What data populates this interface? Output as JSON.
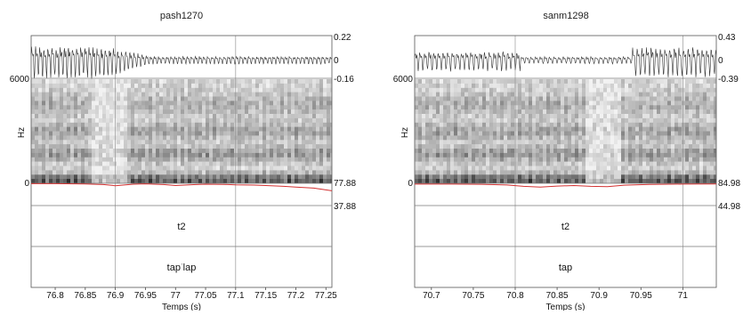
{
  "chart_data": [
    {
      "type": "spectrogram",
      "title": "pash1270",
      "xlabel": "Temps (s)",
      "ylabel": "Hz",
      "xlim": [
        76.76,
        77.26
      ],
      "x_ticks": [
        "76.8",
        "76.85",
        "76.9",
        "76.95",
        "77",
        "77.05",
        "77.1",
        "77.15",
        "77.2",
        "77.25"
      ],
      "x_tick_values": [
        76.8,
        76.85,
        76.9,
        76.95,
        77.0,
        77.05,
        77.1,
        77.15,
        77.2,
        77.25
      ],
      "waveform_ticks": [
        "0.22",
        "0",
        "-0.16"
      ],
      "spectrogram_range": [
        "6000",
        "0"
      ],
      "pitch_range": [
        "77.88",
        "37.88"
      ],
      "pitch_contour": {
        "x": [
          76.76,
          76.8,
          76.85,
          76.88,
          76.9,
          76.93,
          76.95,
          76.98,
          77.0,
          77.03,
          77.05,
          77.08,
          77.1,
          77.13,
          77.15,
          77.18,
          77.2,
          77.23,
          77.26
        ],
        "y": [
          77.3,
          77.3,
          76.7,
          75.6,
          73.6,
          76.2,
          77.0,
          75.7,
          73.9,
          75.4,
          76.2,
          75.9,
          75.1,
          74.7,
          73.9,
          72.4,
          71.2,
          69.3,
          64.5
        ]
      },
      "tier_1": "t2",
      "tier_2": "tapˈlap",
      "tier_2_base": "tap",
      "tier_2_mark": "ˈ",
      "tier_2_rest": "lap"
    },
    {
      "type": "spectrogram",
      "title": "sanm1298",
      "xlabel": "Temps (s)",
      "ylabel": "Hz",
      "xlim": [
        70.68,
        71.04
      ],
      "x_ticks": [
        "70.7",
        "70.75",
        "70.8",
        "70.85",
        "70.9",
        "70.95",
        "71"
      ],
      "x_tick_values": [
        70.7,
        70.75,
        70.8,
        70.85,
        70.9,
        70.95,
        71.0
      ],
      "waveform_ticks": [
        "0.43",
        "0",
        "-0.39"
      ],
      "spectrogram_range": [
        "6000",
        "0"
      ],
      "pitch_range": [
        "84.98",
        "44.98"
      ],
      "pitch_contour": {
        "x": [
          70.68,
          70.72,
          70.76,
          70.79,
          70.81,
          70.83,
          70.85,
          70.87,
          70.89,
          70.91,
          70.93,
          70.96,
          71.0,
          71.04
        ],
        "y": [
          83.6,
          83.5,
          83.3,
          82.0,
          79.5,
          78.2,
          80.0,
          81.0,
          79.5,
          78.9,
          81.6,
          83.0,
          83.6,
          83.7
        ]
      },
      "tier_1": "t2",
      "tier_2": "tap"
    }
  ]
}
